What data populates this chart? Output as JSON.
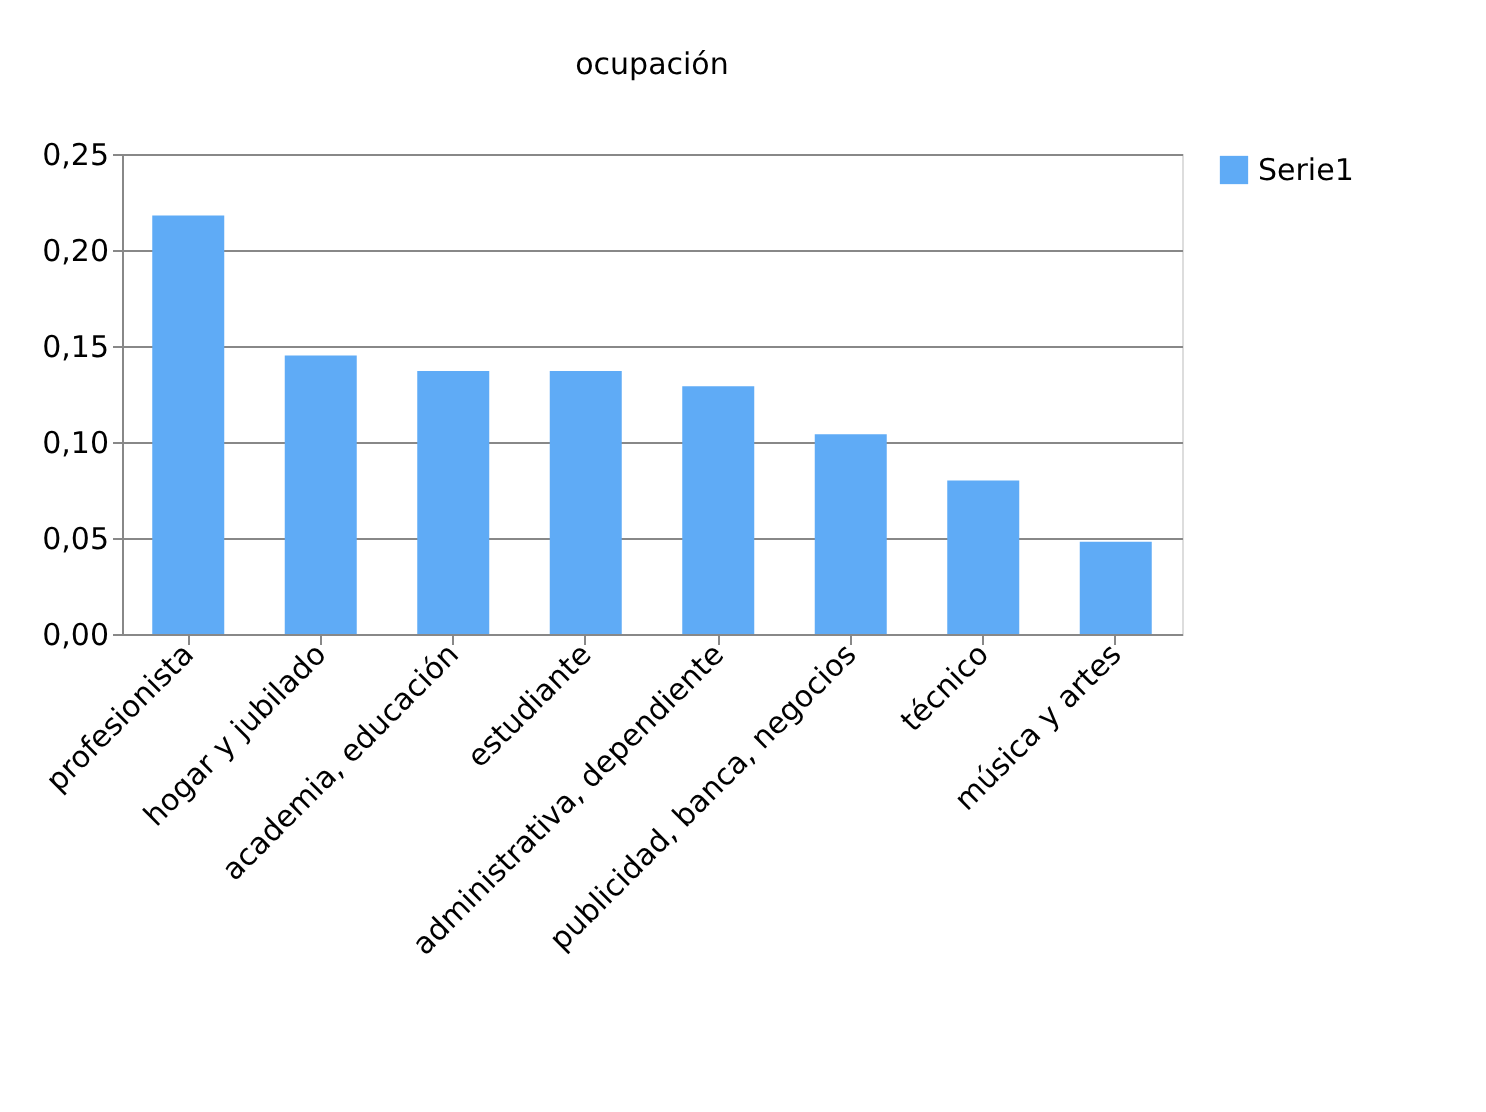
{
  "chart_data": {
    "type": "bar",
    "title": "ocupación",
    "categories": [
      "profesionista",
      "hogar y jubilado",
      "academia, educación",
      "estudiante",
      "administrativa, dependiente",
      "publicidad, banca, negocios",
      "técnico",
      "música y artes"
    ],
    "series": [
      {
        "name": "Serie1",
        "color": "#5fabf6",
        "values": [
          0.218,
          0.145,
          0.137,
          0.137,
          0.129,
          0.104,
          0.08,
          0.048
        ]
      }
    ],
    "ylim": [
      0,
      0.25
    ],
    "yticks": [
      {
        "value": 0,
        "label": "0,00"
      },
      {
        "value": 0.05,
        "label": "0,05"
      },
      {
        "value": 0.1,
        "label": "0,10"
      },
      {
        "value": 0.15,
        "label": "0,15"
      },
      {
        "value": 0.2,
        "label": "0,20"
      },
      {
        "value": 0.25,
        "label": "0,25"
      }
    ],
    "grid": "y",
    "legend": "right"
  }
}
